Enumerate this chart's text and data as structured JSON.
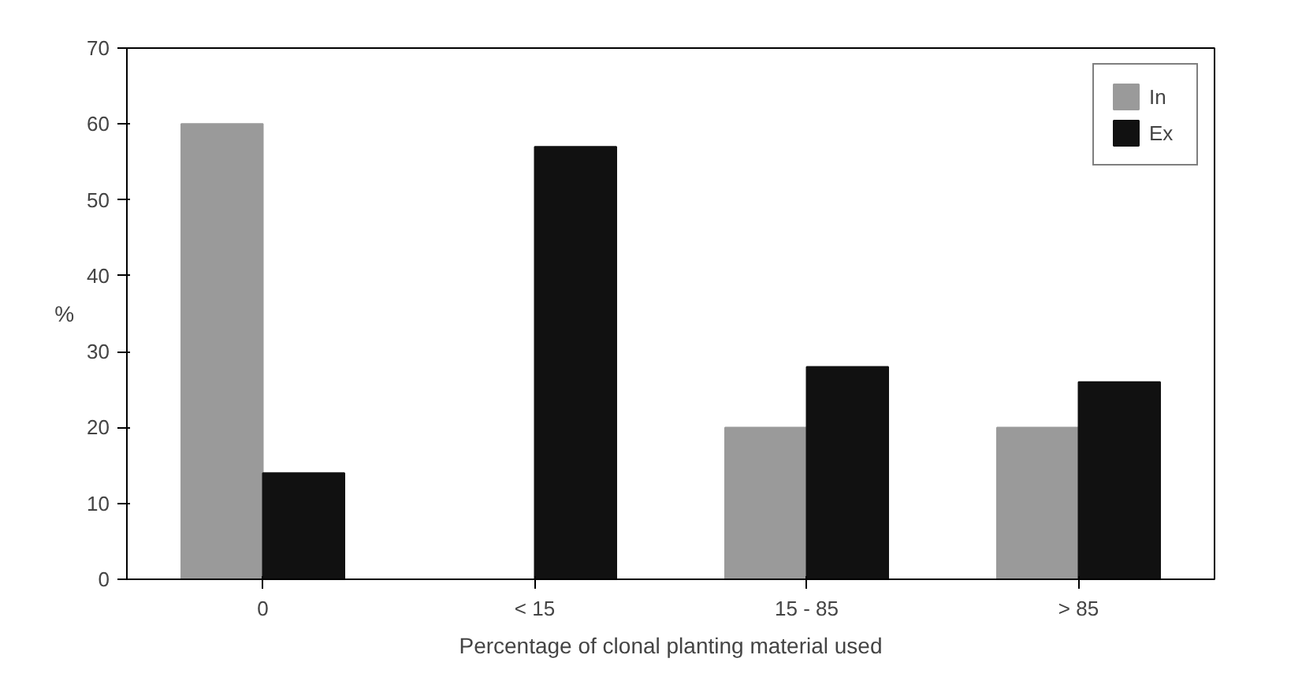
{
  "chart_data": {
    "type": "bar",
    "ylabel": "%",
    "xlabel": "Percentage of clonal planting material used",
    "categories": [
      "0",
      "< 15",
      "15 - 85",
      "> 85"
    ],
    "series": [
      {
        "name": "In",
        "color": "#9a9a9a",
        "values": [
          60,
          0,
          20,
          20
        ]
      },
      {
        "name": "Ex",
        "color": "#111111",
        "values": [
          14,
          57,
          28,
          26
        ]
      }
    ],
    "ylim": [
      0,
      70
    ],
    "yticks": [
      0,
      10,
      20,
      30,
      40,
      50,
      60,
      70
    ],
    "grid": false,
    "legend": "top right"
  }
}
